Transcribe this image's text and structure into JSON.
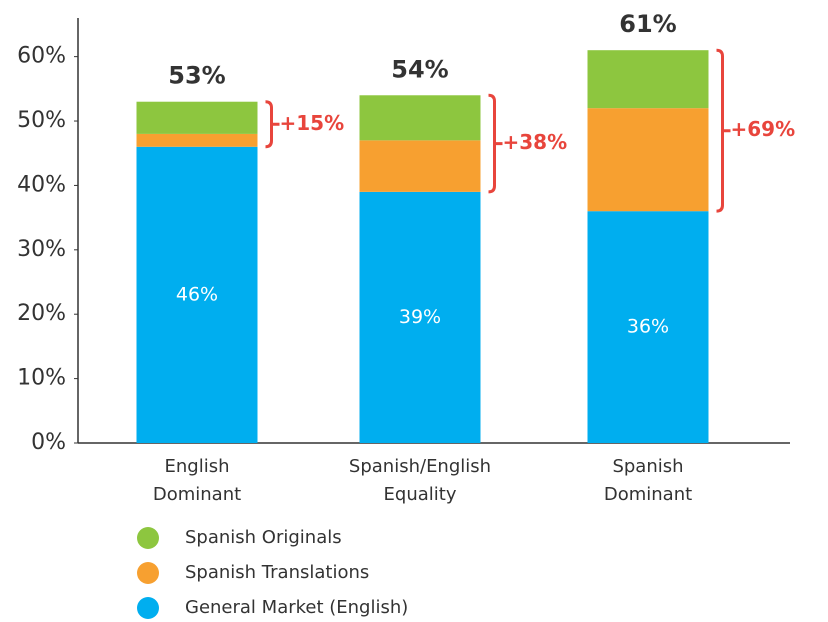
{
  "chart_data": {
    "type": "stacked-bar",
    "categories": [
      [
        "English",
        "Dominant"
      ],
      [
        "Spanish/English",
        "Equality"
      ],
      [
        "Spanish",
        "Dominant"
      ]
    ],
    "series": [
      {
        "name": "General Market (English)",
        "color": "#00aeef",
        "values": [
          46,
          39,
          36
        ],
        "value_labels": [
          "46%",
          "39%",
          "36%"
        ]
      },
      {
        "name": "Spanish Translations",
        "color": "#f7a030",
        "values": [
          2,
          8,
          16
        ]
      },
      {
        "name": "Spanish Originals",
        "color": "#8dc63f",
        "values": [
          5,
          7,
          9
        ]
      }
    ],
    "totals": [
      53,
      54,
      61
    ],
    "total_labels": [
      "53%",
      "54%",
      "61%"
    ],
    "annotations": [
      "+15%",
      "+38%",
      "+69%"
    ],
    "annotation_color": "#e8453c",
    "ylim": [
      0,
      66
    ],
    "yticks": [
      {
        "value": 0,
        "label": "0%"
      },
      {
        "value": 10,
        "label": "10%"
      },
      {
        "value": 20,
        "label": "20%"
      },
      {
        "value": 30,
        "label": "30%"
      },
      {
        "value": 40,
        "label": "40%"
      },
      {
        "value": 50,
        "label": "50%"
      },
      {
        "value": 60,
        "label": "60%"
      }
    ],
    "grid": false
  }
}
